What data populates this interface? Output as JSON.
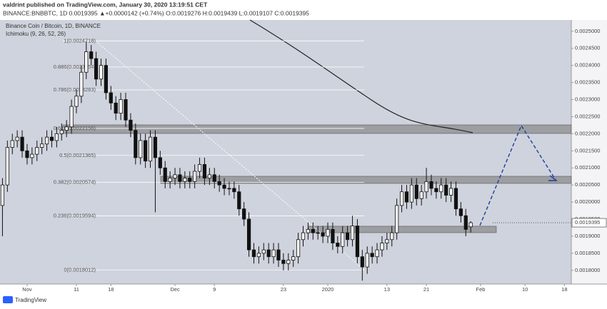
{
  "header": {
    "publisher": "valdrint published on TradingView.com, January 30, 2020 13:19:51 CET",
    "quote": "BINANCE:BNBBTC, 1D  0.0019395  ▲+0.0000142 (+0.74%)  O:0.0019276  H:0.0019439  L:0.0019107  C:0.0019395"
  },
  "legend": {
    "symbol": "Binance Coin / Bitcoin, 1D, BINANCE",
    "indicator": "Ichimoku (9, 26, 52, 26)"
  },
  "footer": "TradingView",
  "chart_data": {
    "type": "candlestick",
    "ylim": [
      0.00176,
      0.002533
    ],
    "xlim": [
      -0.5,
      115.4
    ],
    "yticks": [
      {
        "value": 0.0025,
        "label": "0.0025000"
      },
      {
        "value": 0.00245,
        "label": "0.0024500"
      },
      {
        "value": 0.0024,
        "label": "0.0024000"
      },
      {
        "value": 0.00235,
        "label": "0.0023500"
      },
      {
        "value": 0.0023,
        "label": "0.0023000"
      },
      {
        "value": 0.00225,
        "label": "0.0022500"
      },
      {
        "value": 0.0022,
        "label": "0.0022000"
      },
      {
        "value": 0.00215,
        "label": "0.0021500"
      },
      {
        "value": 0.0021,
        "label": "0.0021000"
      },
      {
        "value": 0.00205,
        "label": "0.0020500"
      },
      {
        "value": 0.002,
        "label": "0.0020000"
      },
      {
        "value": 0.00195,
        "label": "0.0019500"
      },
      {
        "value": 0.0019,
        "label": "0.0019000"
      },
      {
        "value": 0.00185,
        "label": "0.0018500"
      },
      {
        "value": 0.0018,
        "label": "0.0018000"
      }
    ],
    "xticks": [
      {
        "value": 5,
        "label": "Nov"
      },
      {
        "value": 15,
        "label": "11"
      },
      {
        "value": 22,
        "label": "18"
      },
      {
        "value": 35,
        "label": "Dec"
      },
      {
        "value": 43,
        "label": "9"
      },
      {
        "value": 57,
        "label": "23"
      },
      {
        "value": 66,
        "label": "2020"
      },
      {
        "value": 78,
        "label": "13"
      },
      {
        "value": 86,
        "label": "21"
      },
      {
        "value": 97,
        "label": "Feb"
      },
      {
        "value": 106,
        "label": "10"
      },
      {
        "value": 114,
        "label": "18"
      }
    ],
    "up_color": "#ffffff",
    "down_color": "#111111",
    "last_value": 0.0019395,
    "last_label": "0.0019395",
    "fib_levels": [
      {
        "value": 0.0024718,
        "label": "1(0.0024718)"
      },
      {
        "value": 0.0023954,
        "label": "0.886(0.0023954)"
      },
      {
        "value": 0.0023283,
        "label": "0.786(0.0023283)"
      },
      {
        "value": 0.0022156,
        "label": "0.618(0.0022156)"
      },
      {
        "value": 0.0021365,
        "label": "0.5(0.0021365)"
      },
      {
        "value": 0.0020574,
        "label": "0.382(0.0020574)"
      },
      {
        "value": 0.0019594,
        "label": "0.236(0.0019594)"
      },
      {
        "value": 0.0018012,
        "label": "0(0.0018012)"
      }
    ],
    "open": [
      0.00199,
      0.00205,
      0.00216,
      0.00218,
      0.00219,
      0.00215,
      0.00213,
      0.00214,
      0.00216,
      0.00217,
      0.00219,
      0.00218,
      0.0022,
      0.00221,
      0.00222,
      0.00228,
      0.00231,
      0.00238,
      0.00244,
      0.00242,
      0.00236,
      0.0024,
      0.00232,
      0.00229,
      0.00226,
      0.0023,
      0.00224,
      0.00221,
      0.00213,
      0.00218,
      0.00212,
      0.00219,
      0.00213,
      0.0021,
      0.00206,
      0.00207,
      0.00208,
      0.00206,
      0.00207,
      0.00206,
      0.00209,
      0.00211,
      0.00207,
      0.00208,
      0.00206,
      0.00205,
      0.00204,
      0.00204,
      0.00203,
      0.00198,
      0.00195,
      0.00186,
      0.00184,
      0.00185,
      0.00186,
      0.00184,
      0.00186,
      0.00183,
      0.00182,
      0.00183,
      0.00184,
      0.00189,
      0.00191,
      0.00192,
      0.00191,
      0.00191,
      0.0019,
      0.00192,
      0.00188,
      0.00187,
      0.00191,
      0.00189,
      0.00193,
      0.00184,
      0.00181,
      0.00185,
      0.00184,
      0.00186,
      0.00188,
      0.00189,
      0.00191,
      0.00199,
      0.00203,
      0.002,
      0.00205,
      0.00201,
      0.00203,
      0.00206,
      0.00204,
      0.00203,
      0.00205,
      0.00202,
      0.00204,
      0.00198,
      0.00196,
      0.0019276
    ],
    "high": [
      0.00207,
      0.00218,
      0.0022,
      0.00221,
      0.00221,
      0.00217,
      0.00216,
      0.00218,
      0.00219,
      0.00221,
      0.00221,
      0.00222,
      0.00223,
      0.00224,
      0.0023,
      0.00233,
      0.0024,
      0.00247,
      0.00246,
      0.00244,
      0.00242,
      0.00242,
      0.00234,
      0.00231,
      0.00232,
      0.00232,
      0.00226,
      0.00223,
      0.0022,
      0.0022,
      0.00221,
      0.00221,
      0.00215,
      0.00212,
      0.00209,
      0.0021,
      0.0021,
      0.00209,
      0.00209,
      0.00211,
      0.00213,
      0.00213,
      0.0021,
      0.0021,
      0.00208,
      0.00207,
      0.00206,
      0.00206,
      0.00205,
      0.002,
      0.00197,
      0.00188,
      0.00187,
      0.00188,
      0.00188,
      0.00188,
      0.00188,
      0.00185,
      0.00185,
      0.00186,
      0.00191,
      0.00193,
      0.00194,
      0.00194,
      0.00193,
      0.00193,
      0.00194,
      0.00194,
      0.0019,
      0.00193,
      0.00193,
      0.00196,
      0.00195,
      0.00186,
      0.00187,
      0.00187,
      0.00188,
      0.0019,
      0.00191,
      0.00193,
      0.00201,
      0.00205,
      0.00205,
      0.00207,
      0.00207,
      0.00205,
      0.0021,
      0.00208,
      0.00206,
      0.00207,
      0.00207,
      0.00206,
      0.00206,
      0.002,
      0.00198,
      0.0019439
    ],
    "low": [
      0.0019,
      0.00203,
      0.00214,
      0.00216,
      0.00213,
      0.00211,
      0.00211,
      0.00212,
      0.00214,
      0.00215,
      0.00216,
      0.00216,
      0.00218,
      0.00219,
      0.0022,
      0.00226,
      0.00229,
      0.00236,
      0.0024,
      0.00234,
      0.00234,
      0.0023,
      0.00227,
      0.00224,
      0.00224,
      0.00222,
      0.00219,
      0.00211,
      0.00211,
      0.0021,
      0.0021,
      0.00197,
      0.00208,
      0.00204,
      0.00204,
      0.00205,
      0.00204,
      0.00204,
      0.00204,
      0.00204,
      0.00207,
      0.00205,
      0.00205,
      0.00204,
      0.00203,
      0.00202,
      0.00202,
      0.00201,
      0.00196,
      0.00193,
      0.00184,
      0.00182,
      0.00182,
      0.00183,
      0.00182,
      0.00182,
      0.00181,
      0.0018,
      0.0018,
      0.00181,
      0.00182,
      0.00187,
      0.00189,
      0.00189,
      0.00189,
      0.00188,
      0.00188,
      0.00186,
      0.00185,
      0.00185,
      0.00187,
      0.00187,
      0.00182,
      0.00177,
      0.00179,
      0.00182,
      0.00182,
      0.00184,
      0.00186,
      0.00187,
      0.00189,
      0.00197,
      0.00198,
      0.00198,
      0.00199,
      0.00199,
      0.00201,
      0.00202,
      0.00201,
      0.00201,
      0.002,
      0.002,
      0.00196,
      0.00194,
      0.0019,
      0.0019107
    ],
    "close": [
      0.00205,
      0.00216,
      0.00218,
      0.00219,
      0.00215,
      0.00213,
      0.00214,
      0.00216,
      0.00217,
      0.00219,
      0.00218,
      0.0022,
      0.00221,
      0.00222,
      0.00228,
      0.00231,
      0.00238,
      0.00244,
      0.00242,
      0.00236,
      0.0024,
      0.00232,
      0.00229,
      0.00226,
      0.0023,
      0.00224,
      0.00221,
      0.00213,
      0.00218,
      0.00212,
      0.00219,
      0.00213,
      0.0021,
      0.00206,
      0.00207,
      0.00208,
      0.00206,
      0.00207,
      0.00206,
      0.00209,
      0.00211,
      0.00207,
      0.00208,
      0.00206,
      0.00205,
      0.00204,
      0.00204,
      0.00203,
      0.00198,
      0.00195,
      0.00186,
      0.00184,
      0.00185,
      0.00186,
      0.00184,
      0.00186,
      0.00183,
      0.00182,
      0.00183,
      0.00184,
      0.00189,
      0.00191,
      0.00192,
      0.00191,
      0.00191,
      0.0019,
      0.00192,
      0.00188,
      0.00187,
      0.00191,
      0.00189,
      0.00193,
      0.00184,
      0.00181,
      0.00185,
      0.00184,
      0.00186,
      0.00188,
      0.00189,
      0.00191,
      0.00199,
      0.00203,
      0.002,
      0.00205,
      0.00201,
      0.00203,
      0.00206,
      0.00204,
      0.00203,
      0.00205,
      0.00202,
      0.00204,
      0.00198,
      0.00196,
      0.00192,
      0.0019395
    ]
  }
}
